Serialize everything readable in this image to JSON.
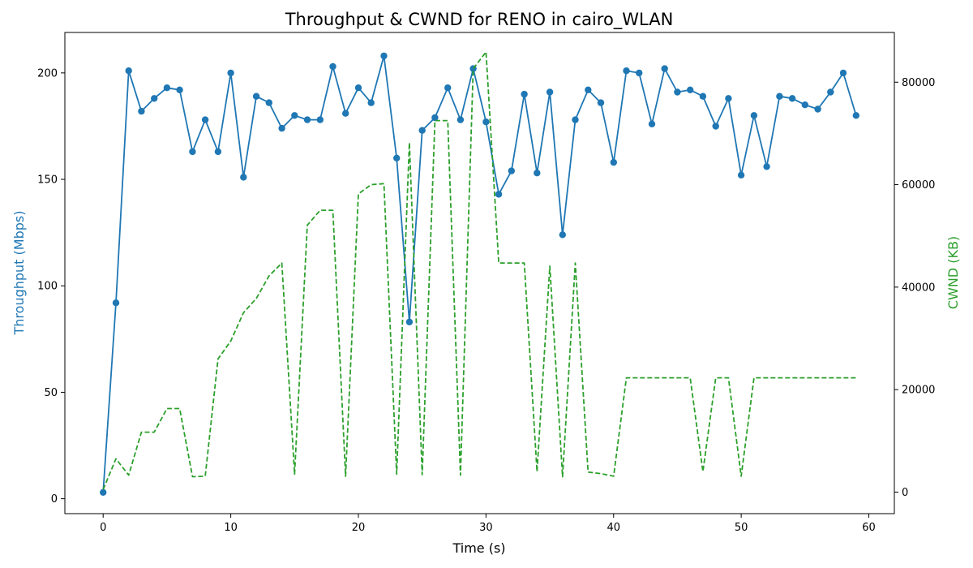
{
  "chart_data": {
    "type": "line",
    "title": "Throughput & CWND for RENO in cairo_WLAN",
    "xlabel": "Time (s)",
    "ylabel": "Throughput (Mbps)",
    "y2label": "CWND (KB)",
    "xlim": [
      -3,
      62
    ],
    "ylim": [
      -7,
      219
    ],
    "y2lim": [
      -4200,
      89700
    ],
    "xticks": [
      0,
      10,
      20,
      30,
      40,
      50,
      60
    ],
    "yticks": [
      0,
      50,
      100,
      150,
      200
    ],
    "y2ticks": [
      0,
      20000,
      40000,
      60000,
      80000
    ],
    "grid": false,
    "x": [
      0,
      1,
      2,
      3,
      4,
      5,
      6,
      7,
      8,
      9,
      10,
      11,
      12,
      13,
      14,
      15,
      16,
      17,
      18,
      19,
      20,
      21,
      22,
      23,
      24,
      25,
      26,
      27,
      28,
      29,
      30,
      31,
      32,
      33,
      34,
      35,
      36,
      37,
      38,
      39,
      40,
      41,
      42,
      43,
      44,
      45,
      46,
      47,
      48,
      49,
      50,
      51,
      52,
      53,
      54,
      55,
      56,
      57,
      58,
      59
    ],
    "series": [
      {
        "name": "Throughput (Mbps)",
        "axis": "left",
        "color": "#1f77b4",
        "style": "solid-markers",
        "values": [
          3,
          92,
          201,
          182,
          188,
          193,
          192,
          163,
          178,
          163,
          200,
          151,
          189,
          186,
          174,
          180,
          178,
          178,
          203,
          181,
          193,
          186,
          208,
          160,
          83,
          173,
          179,
          193,
          178,
          202,
          177,
          143,
          154,
          190,
          153,
          191,
          124,
          178,
          192,
          186,
          158,
          201,
          200,
          176,
          202,
          191,
          192,
          189,
          175,
          188,
          152,
          180,
          156,
          189,
          188,
          185,
          183,
          191,
          200,
          180
        ]
      },
      {
        "name": "CWND (KB)",
        "axis": "right",
        "color": "#2ca02c",
        "style": "dashed",
        "values": [
          500,
          6500,
          3300,
          11700,
          11700,
          16300,
          16300,
          3000,
          3100,
          26000,
          29500,
          35000,
          37800,
          42200,
          44700,
          3500,
          52100,
          55000,
          55000,
          3100,
          58200,
          60000,
          60200,
          3500,
          68200,
          3400,
          72500,
          72500,
          3300,
          82600,
          85900,
          44700,
          44700,
          44700,
          4000,
          44100,
          3000,
          44700,
          3900,
          3600,
          3100,
          22300,
          22300,
          22300,
          22300,
          22300,
          22300,
          4000,
          22300,
          22300,
          3100,
          22300,
          22300,
          22300,
          22300,
          22300,
          22300,
          22300,
          22300,
          22300
        ]
      }
    ]
  }
}
